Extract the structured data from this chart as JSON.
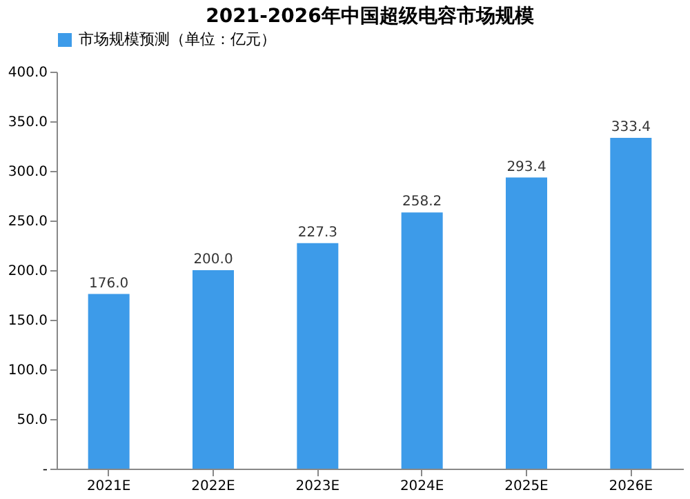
{
  "chart_data": {
    "type": "bar",
    "title": "2021-2026年中国超级电容市场规模",
    "categories": [
      "2021E",
      "2022E",
      "2023E",
      "2024E",
      "2025E",
      "2026E"
    ],
    "series": [
      {
        "name": "市场规模预测（单位：亿元）",
        "color": "#3d9be9",
        "values": [
          176.0,
          200.0,
          227.3,
          258.2,
          293.4,
          333.4
        ]
      }
    ],
    "value_labels": [
      "176.0",
      "200.0",
      "227.3",
      "258.2",
      "293.4",
      "333.4"
    ],
    "ylim": [
      0,
      400
    ],
    "yticks": [
      {
        "value": 0,
        "label": "-"
      },
      {
        "value": 50,
        "label": "50.0"
      },
      {
        "value": 100,
        "label": "100.0"
      },
      {
        "value": 150,
        "label": "150.0"
      },
      {
        "value": 200,
        "label": "200.0"
      },
      {
        "value": 250,
        "label": "250.0"
      },
      {
        "value": 300,
        "label": "300.0"
      },
      {
        "value": 350,
        "label": "350.0"
      },
      {
        "value": 400,
        "label": "400.0"
      }
    ],
    "grid": false,
    "legend": "top"
  }
}
